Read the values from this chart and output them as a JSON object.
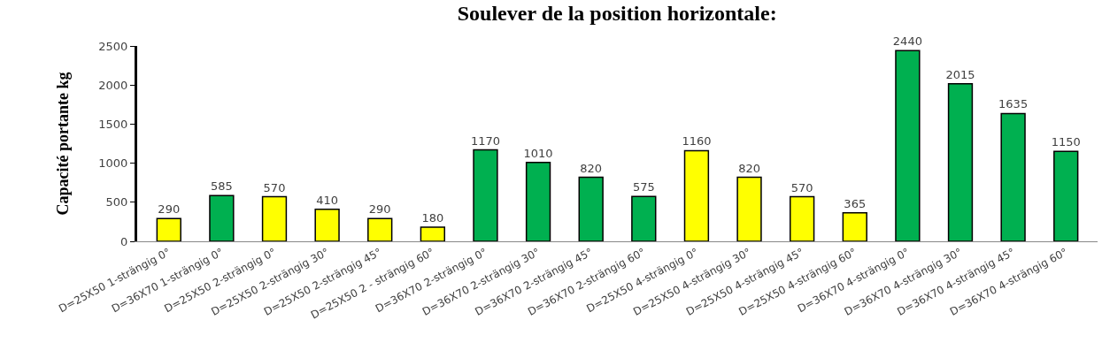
{
  "chart_data": {
    "type": "bar",
    "title": "Soulever de la position horizontale:",
    "ylabel": "Capacité portante kg",
    "categories": [
      "D=25X50 1-strängig 0°",
      "D=36X70 1-strängig 0°",
      "D=25X50 2-strängig 0°",
      "D=25X50 2-strängig 30°",
      "D=25X50 2-strängig 45°",
      "D=25X50 2 - strängig 60°",
      "D=36X70 2-strängig 0°",
      "D=36X70 2-strängig 30°",
      "D=36X70 2-strängig 45°",
      "D=36X70 2-strängig 60°",
      "D=25X50 4-strängig 0°",
      "D=25X50 4-strängig 30°",
      "D=25X50 4-strängig 45°",
      "D=25X50 4-strängig 60°",
      "D=36X70 4-strängig 0°",
      "D=36X70 4-strängig 30°",
      "D=36X70 4-strängig 45°",
      "D=36X70 4-strängig 60°"
    ],
    "values": [
      290,
      585,
      570,
      410,
      290,
      180,
      1170,
      1010,
      820,
      575,
      1160,
      820,
      570,
      365,
      2440,
      2015,
      1635,
      1150
    ],
    "colors": [
      "#ffff00",
      "#00b050",
      "#ffff00",
      "#ffff00",
      "#ffff00",
      "#ffff00",
      "#00b050",
      "#00b050",
      "#00b050",
      "#00b050",
      "#ffff00",
      "#ffff00",
      "#ffff00",
      "#ffff00",
      "#00b050",
      "#00b050",
      "#00b050",
      "#00b050"
    ],
    "ylim": [
      0,
      2500
    ],
    "yticks": [
      0,
      500,
      1000,
      1500,
      2000,
      2500
    ],
    "data_labels": true
  }
}
